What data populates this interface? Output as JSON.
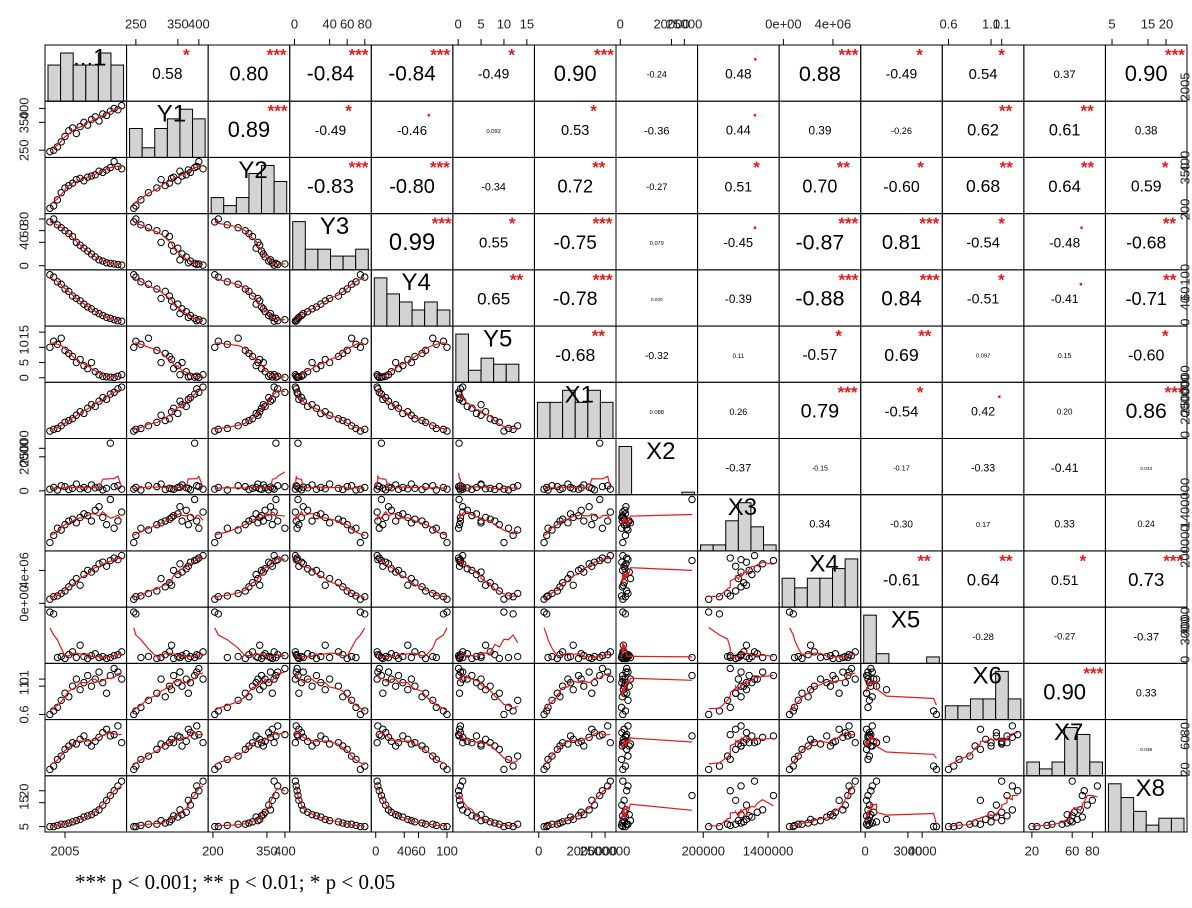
{
  "chart_data": {
    "type": "scatter-matrix",
    "variables": [
      {
        "name": "...1",
        "values": [
          2001,
          2002,
          2003,
          2004,
          2005,
          2006,
          2007,
          2008,
          2009,
          2010,
          2011,
          2012,
          2013,
          2014,
          2015,
          2016,
          2017,
          2018,
          2019,
          2020
        ],
        "lim": [
          2000.5,
          2020.5
        ],
        "ticks": [
          2005
        ]
      },
      {
        "name": "Y1",
        "values": [
          245,
          250,
          262,
          280,
          300,
          320,
          330,
          310,
          335,
          350,
          340,
          360,
          370,
          355,
          380,
          375,
          390,
          400,
          395,
          410
        ],
        "lim": [
          235,
          415
        ],
        "ticks": [
          250,
          350,
          400
        ]
      },
      {
        "name": "Y2",
        "values": [
          205,
          215,
          240,
          270,
          290,
          300,
          310,
          325,
          330,
          320,
          335,
          340,
          345,
          360,
          355,
          365,
          375,
          400,
          380,
          370
        ],
        "lim": [
          195,
          405
        ],
        "ticks": [
          200,
          350,
          400
        ]
      },
      {
        "name": "Y3",
        "values": [
          75,
          80,
          70,
          65,
          60,
          55,
          50,
          40,
          35,
          30,
          25,
          20,
          15,
          10,
          8,
          5,
          4,
          3,
          2,
          1
        ],
        "lim": [
          -2,
          84
        ],
        "ticks": [
          0,
          40,
          60,
          80
        ]
      },
      {
        "name": "Y4",
        "values": [
          100,
          95,
          85,
          80,
          70,
          65,
          55,
          50,
          45,
          38,
          32,
          28,
          22,
          18,
          14,
          10,
          8,
          5,
          3,
          2
        ],
        "lim": [
          -2,
          104
        ],
        "ticks": [
          0,
          40,
          60,
          100
        ]
      },
      {
        "name": "Y5",
        "values": [
          10,
          12,
          11,
          13,
          9,
          8,
          7,
          5,
          6,
          4,
          3,
          5,
          2,
          1,
          0.5,
          0.3,
          0.2,
          0.1,
          0.5,
          1
        ],
        "lim": [
          -0.5,
          16
        ],
        "ticks": [
          0,
          5,
          10,
          15
        ]
      },
      {
        "name": "X1",
        "values": [
          200000,
          300000,
          350000,
          500000,
          700000,
          800000,
          900000,
          1100000,
          1300000,
          1200000,
          1500000,
          1700000,
          1600000,
          1900000,
          2100000,
          2000000,
          2300000,
          2400000,
          2600000,
          2700000
        ],
        "lim": [
          -50000,
          2800000
        ],
        "ticks": [
          0,
          2000000,
          2500000
        ]
      },
      {
        "name": "X2",
        "values": [
          1000,
          2000,
          500,
          3000,
          2500,
          800,
          1500,
          4000,
          1200,
          2000,
          900,
          3500,
          1800,
          2200,
          600,
          1500,
          28000,
          2500,
          3000,
          1000
        ],
        "lim": [
          -500,
          29000
        ],
        "ticks": [
          0,
          20000,
          25000
        ]
      },
      {
        "name": "X3",
        "values": [
          300000,
          500000,
          700000,
          650000,
          800000,
          900000,
          950000,
          850000,
          1000000,
          1100000,
          1050000,
          900000,
          1200000,
          1300000,
          1000000,
          800000,
          1500000,
          700000,
          900000,
          1150000
        ],
        "lim": [
          150000,
          1550000
        ],
        "ticks": [
          200000,
          1400000
        ]
      },
      {
        "name": "X4",
        "values": [
          500000,
          800000,
          900000,
          1200000,
          1500000,
          2000000,
          2500000,
          3000000,
          2200000,
          3500000,
          4000000,
          3800000,
          4200000,
          4800000,
          5000000,
          4500000,
          5200000,
          5500000,
          5300000,
          5800000
        ],
        "lim": [
          -100000,
          6000000
        ],
        "ticks": [
          {
            "value": 0,
            "label": "0e+00"
          },
          {
            "value": 4000000,
            "label": "4e+06"
          }
        ]
      },
      {
        "name": "X5",
        "values": [
          5000,
          4800,
          200,
          300,
          100,
          500,
          800,
          200,
          1500,
          300,
          100,
          400,
          600,
          200,
          300,
          100,
          200,
          400,
          500,
          800
        ],
        "lim": [
          -100,
          5200
        ],
        "ticks": [
          0,
          3000,
          4000
        ]
      },
      {
        "name": "X6",
        "values": [
          0.6,
          0.65,
          0.7,
          0.8,
          0.9,
          0.85,
          1.0,
          1.1,
          0.95,
          1.05,
          1.15,
          1.0,
          1.1,
          1.2,
          1.05,
          0.9,
          1.15,
          1.25,
          1.2,
          1.1
        ],
        "lim": [
          0.57,
          1.28
        ],
        "ticks": [
          0.6,
          {
            "value": 1,
            "label": "1.0"
          },
          1.1
        ]
      },
      {
        "name": "X7",
        "values": [
          20,
          25,
          35,
          40,
          50,
          55,
          60,
          58,
          65,
          70,
          60,
          55,
          62,
          68,
          75,
          80,
          70,
          72,
          85,
          60
        ],
        "lim": [
          15,
          90
        ],
        "ticks": [
          20,
          60,
          80
        ]
      },
      {
        "name": "X8",
        "values": [
          5,
          5,
          5.5,
          6,
          6,
          6.5,
          7,
          7.5,
          8,
          9,
          9.5,
          10,
          11,
          12,
          14,
          16,
          18,
          20,
          22,
          24
        ],
        "lim": [
          4,
          25
        ],
        "ticks": [
          5,
          15,
          20
        ]
      }
    ],
    "correlations": {
      "values": [
        [
          null,
          0.58,
          0.8,
          -0.84,
          -0.84,
          -0.49,
          0.9,
          -0.24,
          0.48,
          0.88,
          -0.49,
          0.54,
          0.37,
          0.9
        ],
        [
          null,
          null,
          0.89,
          -0.49,
          -0.46,
          0.092,
          0.53,
          -0.36,
          0.44,
          0.39,
          -0.26,
          0.62,
          0.61,
          0.38
        ],
        [
          null,
          null,
          null,
          -0.83,
          -0.8,
          -0.34,
          0.72,
          -0.27,
          0.51,
          0.7,
          -0.6,
          0.68,
          0.64,
          0.59
        ],
        [
          null,
          null,
          null,
          null,
          0.99,
          0.55,
          -0.75,
          0.079,
          -0.45,
          -0.87,
          0.81,
          -0.54,
          -0.48,
          -0.68
        ],
        [
          null,
          null,
          null,
          null,
          null,
          0.65,
          -0.78,
          0.03,
          -0.39,
          -0.88,
          0.84,
          -0.51,
          -0.41,
          -0.71
        ],
        [
          null,
          null,
          null,
          null,
          null,
          null,
          -0.68,
          -0.32,
          0.11,
          -0.57,
          0.69,
          0.097,
          0.15,
          -0.6
        ],
        [
          null,
          null,
          null,
          null,
          null,
          null,
          null,
          0.088,
          0.26,
          0.79,
          -0.54,
          0.42,
          0.2,
          0.86
        ],
        [
          null,
          null,
          null,
          null,
          null,
          null,
          null,
          null,
          -0.37,
          -0.15,
          -0.17,
          -0.33,
          -0.41,
          0.034
        ],
        [
          null,
          null,
          null,
          null,
          null,
          null,
          null,
          null,
          null,
          0.34,
          -0.3,
          0.17,
          0.33,
          0.24
        ],
        [
          null,
          null,
          null,
          null,
          null,
          null,
          null,
          null,
          null,
          null,
          -0.61,
          0.64,
          0.51,
          0.73
        ],
        [
          null,
          null,
          null,
          null,
          null,
          null,
          null,
          null,
          null,
          null,
          null,
          -0.28,
          -0.27,
          -0.37
        ],
        [
          null,
          null,
          null,
          null,
          null,
          null,
          null,
          null,
          null,
          null,
          null,
          null,
          0.9,
          0.33
        ],
        [
          null,
          null,
          null,
          null,
          null,
          null,
          null,
          null,
          null,
          null,
          null,
          null,
          null,
          0.039
        ],
        [
          null,
          null,
          null,
          null,
          null,
          null,
          null,
          null,
          null,
          null,
          null,
          null,
          null,
          null
        ]
      ],
      "value_labels": [
        [
          null,
          "0.58",
          "0.80",
          "-0.84",
          "-0.84",
          "-0.49",
          "0.90",
          "-0.24",
          "0.48",
          "0.88",
          "-0.49",
          "0.54",
          "0.37",
          "0.90"
        ],
        [
          null,
          null,
          "0.89",
          "-0.49",
          "-0.46",
          "0.092",
          "0.53",
          "-0.36",
          "0.44",
          "0.39",
          "-0.26",
          "0.62",
          "0.61",
          "0.38"
        ],
        [
          null,
          null,
          null,
          "-0.83",
          "-0.80",
          "-0.34",
          "0.72",
          "-0.27",
          "0.51",
          "0.70",
          "-0.60",
          "0.68",
          "0.64",
          "0.59"
        ],
        [
          null,
          null,
          null,
          null,
          "0.99",
          "0.55",
          "-0.75",
          "0.079",
          "-0.45",
          "-0.87",
          "0.81",
          "-0.54",
          "-0.48",
          "-0.68"
        ],
        [
          null,
          null,
          null,
          null,
          null,
          "0.65",
          "-0.78",
          "0.030",
          "-0.39",
          "-0.88",
          "0.84",
          "-0.51",
          "-0.41",
          "-0.71"
        ],
        [
          null,
          null,
          null,
          null,
          null,
          null,
          "-0.68",
          "-0.32",
          "0.11",
          "-0.57",
          "0.69",
          "0.097",
          "0.15",
          "-0.60"
        ],
        [
          null,
          null,
          null,
          null,
          null,
          null,
          null,
          "0.088",
          "0.26",
          "0.79",
          "-0.54",
          "0.42",
          "0.20",
          "0.86"
        ],
        [
          null,
          null,
          null,
          null,
          null,
          null,
          null,
          null,
          "-0.37",
          "-0.15",
          "-0.17",
          "-0.33",
          "-0.41",
          "0.034"
        ],
        [
          null,
          null,
          null,
          null,
          null,
          null,
          null,
          null,
          null,
          "0.34",
          "-0.30",
          "0.17",
          "0.33",
          "0.24"
        ],
        [
          null,
          null,
          null,
          null,
          null,
          null,
          null,
          null,
          null,
          null,
          "-0.61",
          "0.64",
          "0.51",
          "0.73"
        ],
        [
          null,
          null,
          null,
          null,
          null,
          null,
          null,
          null,
          null,
          null,
          null,
          "-0.28",
          "-0.27",
          "-0.37"
        ],
        [
          null,
          null,
          null,
          null,
          null,
          null,
          null,
          null,
          null,
          null,
          null,
          null,
          "0.90",
          "0.33"
        ],
        [
          null,
          null,
          null,
          null,
          null,
          null,
          null,
          null,
          null,
          null,
          null,
          null,
          null,
          "0.039"
        ],
        [
          null,
          null,
          null,
          null,
          null,
          null,
          null,
          null,
          null,
          null,
          null,
          null,
          null,
          null
        ]
      ],
      "stars": [
        [
          null,
          "*",
          "***",
          "***",
          "***",
          "*",
          "***",
          null,
          ".",
          "***",
          "*",
          "*",
          null,
          "***"
        ],
        [
          null,
          null,
          "***",
          "*",
          ".",
          null,
          "*",
          null,
          ".",
          null,
          null,
          "**",
          "**",
          null
        ],
        [
          null,
          null,
          null,
          "***",
          "***",
          null,
          "**",
          null,
          "*",
          "**",
          "*",
          "**",
          "**",
          "*"
        ],
        [
          null,
          null,
          null,
          null,
          "***",
          "*",
          "***",
          null,
          ".",
          "***",
          "***",
          "*",
          ".",
          "**"
        ],
        [
          null,
          null,
          null,
          null,
          null,
          "**",
          "***",
          null,
          null,
          "***",
          "***",
          "*",
          ".",
          "**"
        ],
        [
          null,
          null,
          null,
          null,
          null,
          null,
          "**",
          null,
          null,
          "*",
          "**",
          null,
          null,
          "*"
        ],
        [
          null,
          null,
          null,
          null,
          null,
          null,
          null,
          null,
          null,
          "***",
          "*",
          ".",
          null,
          "***"
        ],
        [
          null,
          null,
          null,
          null,
          null,
          null,
          null,
          null,
          null,
          null,
          null,
          null,
          null,
          null
        ],
        [
          null,
          null,
          null,
          null,
          null,
          null,
          null,
          null,
          null,
          null,
          null,
          null,
          null,
          null
        ],
        [
          null,
          null,
          null,
          null,
          null,
          null,
          null,
          null,
          null,
          null,
          "**",
          "**",
          "*",
          "***"
        ],
        [
          null,
          null,
          null,
          null,
          null,
          null,
          null,
          null,
          null,
          null,
          null,
          null,
          null,
          null
        ],
        [
          null,
          null,
          null,
          null,
          null,
          null,
          null,
          null,
          null,
          null,
          null,
          null,
          "***",
          null
        ],
        [
          null,
          null,
          null,
          null,
          null,
          null,
          null,
          null,
          null,
          null,
          null,
          null,
          null,
          null
        ],
        [
          null,
          null,
          null,
          null,
          null,
          null,
          null,
          null,
          null,
          null,
          null,
          null,
          null,
          null
        ]
      ]
    },
    "note": "*** p < 0.001; ** p < 0.01; * p < 0.05"
  }
}
